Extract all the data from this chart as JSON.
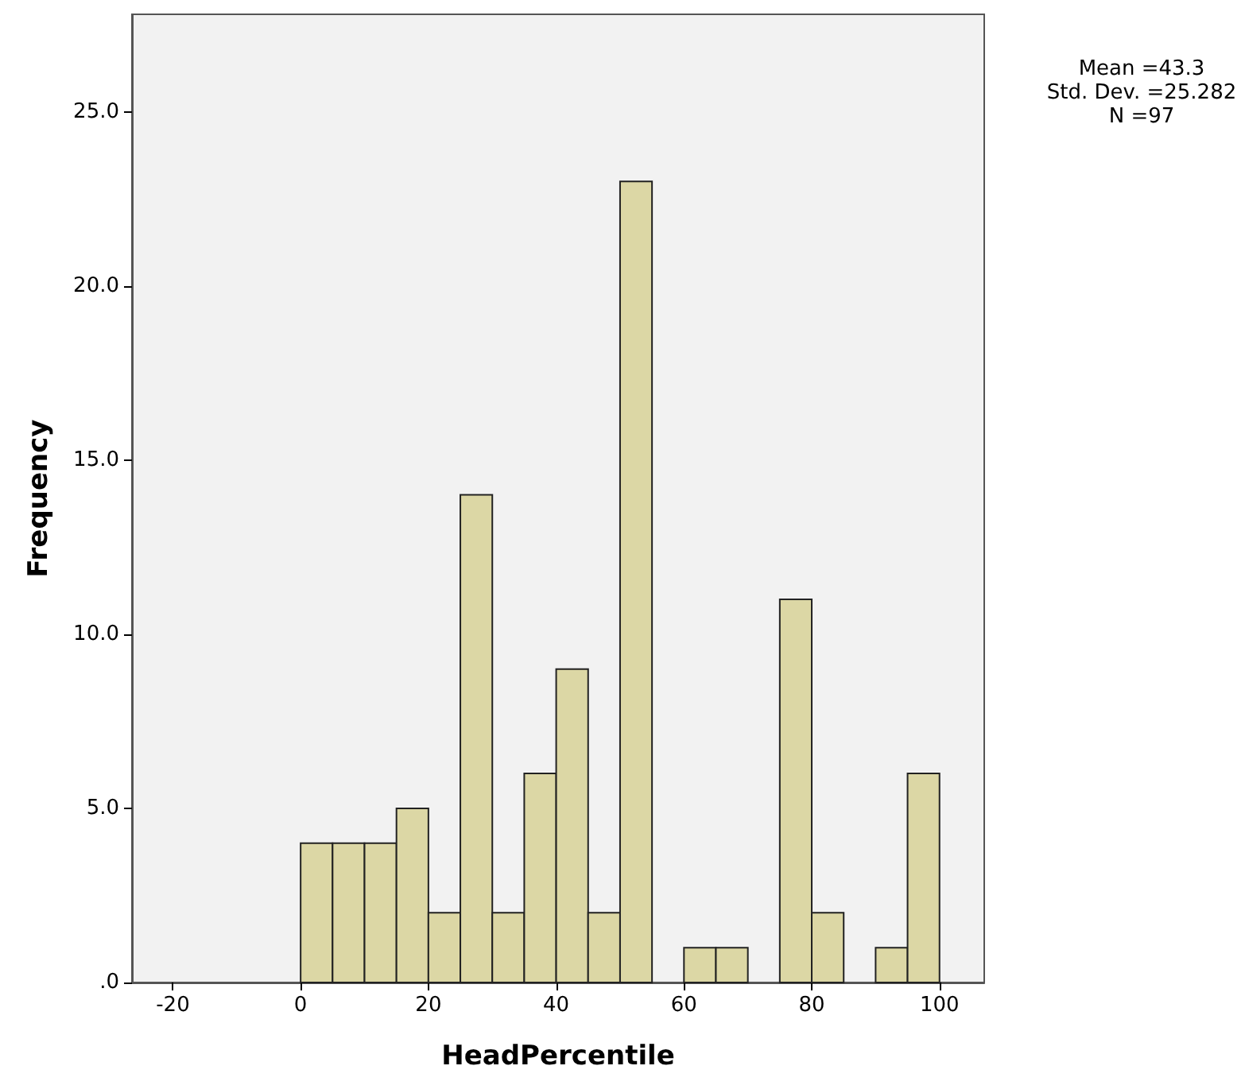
{
  "chart_data": {
    "type": "histogram",
    "xlabel": "HeadPercentile",
    "ylabel": "Frequency",
    "annotations": [
      "Mean =43.3",
      "Std. Dev. =25.282",
      "N =97"
    ],
    "bins": [
      0,
      5,
      10,
      15,
      20,
      25,
      30,
      35,
      40,
      45,
      50,
      55,
      60,
      65,
      70,
      75,
      80,
      85,
      90,
      95,
      100
    ],
    "values": [
      4,
      4,
      4,
      5,
      2,
      14,
      2,
      6,
      9,
      2,
      23,
      0,
      1,
      1,
      0,
      11,
      2,
      0,
      1,
      6
    ],
    "color": "#dcd7a5",
    "xlim": [
      -26.4,
      107
    ],
    "xticks": [
      -20,
      0,
      20,
      40,
      60,
      80,
      100
    ],
    "ylim": [
      0,
      27.8
    ],
    "yticks": [
      {
        "value": 0,
        "label": ".0"
      },
      {
        "value": 5,
        "label": "5.0"
      },
      {
        "value": 10,
        "label": "10.0"
      },
      {
        "value": 15,
        "label": "15.0"
      },
      {
        "value": 20,
        "label": "20.0"
      },
      {
        "value": 25,
        "label": "25.0"
      }
    ],
    "grid": false
  }
}
